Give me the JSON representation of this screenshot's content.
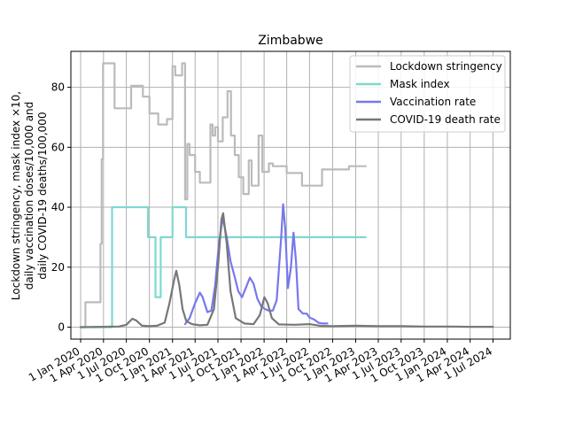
{
  "chart_data": {
    "type": "line",
    "title": "Zimbabwe",
    "xlabel": "",
    "ylabel_lines": [
      "Lockdown stringency, mask index ×10,",
      "daily vaccination doses/10,000 and",
      "daily COVID-19 deaths/100,000"
    ],
    "ylim": [
      -4,
      92
    ],
    "xlim": [
      "2019-11-23",
      "2024-09-08"
    ],
    "grid": true,
    "legend_position": "top-right",
    "y_ticks": [
      0,
      20,
      40,
      60,
      80
    ],
    "x_ticks": [
      {
        "label": "1 Jan 2020",
        "date": "2020-01-01"
      },
      {
        "label": "1 Apr 2020",
        "date": "2020-04-01"
      },
      {
        "label": "1 Jul 2020",
        "date": "2020-07-01"
      },
      {
        "label": "1 Oct 2020",
        "date": "2020-10-01"
      },
      {
        "label": "1 Jan 2021",
        "date": "2021-01-01"
      },
      {
        "label": "1 Apr 2021",
        "date": "2021-04-01"
      },
      {
        "label": "1 Jul 2021",
        "date": "2021-07-01"
      },
      {
        "label": "1 Oct 2021",
        "date": "2021-10-01"
      },
      {
        "label": "1 Jan 2022",
        "date": "2022-01-01"
      },
      {
        "label": "1 Apr 2022",
        "date": "2022-04-01"
      },
      {
        "label": "1 Jul 2022",
        "date": "2022-07-01"
      },
      {
        "label": "1 Oct 2022",
        "date": "2022-10-01"
      },
      {
        "label": "1 Jan 2023",
        "date": "2023-01-01"
      },
      {
        "label": "1 Apr 2023",
        "date": "2023-04-01"
      },
      {
        "label": "1 Jul 2023",
        "date": "2023-07-01"
      },
      {
        "label": "1 Oct 2023",
        "date": "2023-10-01"
      },
      {
        "label": "1 Jan 2024",
        "date": "2024-01-01"
      },
      {
        "label": "1 Apr 2024",
        "date": "2024-04-01"
      },
      {
        "label": "1 Jul 2024",
        "date": "2024-07-01"
      }
    ],
    "series": [
      {
        "name": "Lockdown stringency",
        "color": "#bbbbbb",
        "step": true,
        "points": [
          [
            "2020-01-01",
            0
          ],
          [
            "2020-01-20",
            8.3
          ],
          [
            "2020-03-20",
            27.8
          ],
          [
            "2020-03-25",
            56
          ],
          [
            "2020-03-30",
            88
          ],
          [
            "2020-05-15",
            73
          ],
          [
            "2020-07-20",
            80.5
          ],
          [
            "2020-08-15",
            80.5
          ],
          [
            "2020-09-05",
            76.9
          ],
          [
            "2020-10-01",
            71.3
          ],
          [
            "2020-11-05",
            67.6
          ],
          [
            "2020-12-10",
            69.4
          ],
          [
            "2021-01-01",
            87
          ],
          [
            "2021-01-12",
            84
          ],
          [
            "2021-02-08",
            88
          ],
          [
            "2021-02-20",
            42.6
          ],
          [
            "2021-03-01",
            61.1
          ],
          [
            "2021-03-10",
            57.4
          ],
          [
            "2021-04-01",
            51.8
          ],
          [
            "2021-04-20",
            48.2
          ],
          [
            "2021-06-01",
            67.6
          ],
          [
            "2021-06-10",
            63.9
          ],
          [
            "2021-06-20",
            66.7
          ],
          [
            "2021-07-01",
            62
          ],
          [
            "2021-07-20",
            70
          ],
          [
            "2021-08-08",
            78.7
          ],
          [
            "2021-08-22",
            63.9
          ],
          [
            "2021-09-06",
            57.4
          ],
          [
            "2021-09-22",
            50
          ],
          [
            "2021-10-10",
            44.4
          ],
          [
            "2021-11-01",
            55.6
          ],
          [
            "2021-11-12",
            47.2
          ],
          [
            "2021-12-10",
            63.9
          ],
          [
            "2021-12-25",
            51.8
          ],
          [
            "2022-01-20",
            54.6
          ],
          [
            "2022-02-05",
            53.7
          ],
          [
            "2022-04-01",
            51.4
          ],
          [
            "2022-06-01",
            47.2
          ],
          [
            "2022-08-20",
            52.6
          ],
          [
            "2022-12-05",
            53.7
          ],
          [
            "2023-02-10",
            53.7
          ]
        ]
      },
      {
        "name": "Mask index",
        "color": "#7fd8d2",
        "step": true,
        "points": [
          [
            "2020-01-01",
            0
          ],
          [
            "2020-05-05",
            40
          ],
          [
            "2020-09-25",
            30
          ],
          [
            "2020-10-25",
            10
          ],
          [
            "2020-11-15",
            30
          ],
          [
            "2021-01-01",
            40
          ],
          [
            "2021-02-24",
            30
          ],
          [
            "2023-02-10",
            30
          ]
        ]
      },
      {
        "name": "Vaccination rate",
        "color": "#7777ee",
        "step": false,
        "points": [
          [
            "2021-02-20",
            1
          ],
          [
            "2021-03-10",
            3
          ],
          [
            "2021-04-01",
            8
          ],
          [
            "2021-04-20",
            11.5
          ],
          [
            "2021-05-01",
            10
          ],
          [
            "2021-05-20",
            5
          ],
          [
            "2021-06-05",
            5.5
          ],
          [
            "2021-06-20",
            14
          ],
          [
            "2021-07-05",
            28
          ],
          [
            "2021-07-20",
            36.5
          ],
          [
            "2021-08-05",
            30
          ],
          [
            "2021-08-20",
            22
          ],
          [
            "2021-09-05",
            17
          ],
          [
            "2021-09-20",
            12
          ],
          [
            "2021-10-05",
            10
          ],
          [
            "2021-10-20",
            13
          ],
          [
            "2021-11-05",
            16.5
          ],
          [
            "2021-11-20",
            14.5
          ],
          [
            "2021-12-05",
            9.5
          ],
          [
            "2021-12-20",
            7
          ],
          [
            "2022-01-05",
            6
          ],
          [
            "2022-01-20",
            5.5
          ],
          [
            "2022-02-05",
            5.5
          ],
          [
            "2022-02-20",
            9
          ],
          [
            "2022-03-10",
            30
          ],
          [
            "2022-03-18",
            41
          ],
          [
            "2022-03-26",
            33
          ],
          [
            "2022-04-06",
            13
          ],
          [
            "2022-04-18",
            20
          ],
          [
            "2022-04-28",
            31.5
          ],
          [
            "2022-05-08",
            22
          ],
          [
            "2022-05-18",
            6
          ],
          [
            "2022-06-05",
            4.5
          ],
          [
            "2022-06-20",
            4.5
          ],
          [
            "2022-07-01",
            3.2
          ],
          [
            "2022-07-20",
            2.5
          ],
          [
            "2022-08-05",
            1.5
          ],
          [
            "2022-08-20",
            1.2
          ],
          [
            "2022-09-10",
            1.2
          ]
        ]
      },
      {
        "name": "COVID-19 death rate",
        "color": "#777777",
        "step": false,
        "points": [
          [
            "2020-01-01",
            0
          ],
          [
            "2020-04-01",
            0.1
          ],
          [
            "2020-06-01",
            0.2
          ],
          [
            "2020-07-01",
            0.8
          ],
          [
            "2020-07-25",
            2.8
          ],
          [
            "2020-08-10",
            2.2
          ],
          [
            "2020-09-01",
            0.5
          ],
          [
            "2020-10-01",
            0.3
          ],
          [
            "2020-11-01",
            0.5
          ],
          [
            "2020-12-01",
            1.5
          ],
          [
            "2020-12-20",
            8
          ],
          [
            "2021-01-08",
            16
          ],
          [
            "2021-01-16",
            18.8
          ],
          [
            "2021-01-28",
            14
          ],
          [
            "2021-02-10",
            6
          ],
          [
            "2021-02-25",
            2
          ],
          [
            "2021-03-20",
            1
          ],
          [
            "2021-04-20",
            0.6
          ],
          [
            "2021-05-20",
            0.8
          ],
          [
            "2021-06-15",
            6
          ],
          [
            "2021-07-01",
            20
          ],
          [
            "2021-07-15",
            36
          ],
          [
            "2021-07-22",
            38
          ],
          [
            "2021-08-05",
            28
          ],
          [
            "2021-08-20",
            12
          ],
          [
            "2021-09-10",
            3
          ],
          [
            "2021-10-15",
            1.2
          ],
          [
            "2021-11-20",
            1
          ],
          [
            "2021-12-15",
            4
          ],
          [
            "2022-01-02",
            10
          ],
          [
            "2022-01-15",
            8
          ],
          [
            "2022-02-01",
            3
          ],
          [
            "2022-03-01",
            0.9
          ],
          [
            "2022-05-01",
            0.8
          ],
          [
            "2022-07-01",
            1
          ],
          [
            "2022-08-15",
            0.4
          ],
          [
            "2022-10-01",
            0.3
          ],
          [
            "2023-01-01",
            0.5
          ],
          [
            "2023-04-01",
            0.3
          ],
          [
            "2023-07-01",
            0.3
          ],
          [
            "2023-10-01",
            0.2
          ],
          [
            "2024-01-01",
            0.2
          ],
          [
            "2024-04-01",
            0.1
          ],
          [
            "2024-07-01",
            0.1
          ]
        ]
      }
    ]
  }
}
